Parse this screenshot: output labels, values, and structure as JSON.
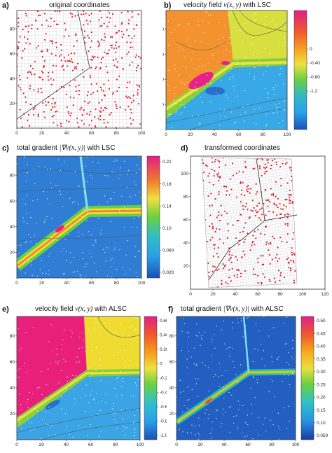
{
  "panels": {
    "a": {
      "label": "a)",
      "title": "original coordinates"
    },
    "b": {
      "label": "b)",
      "title_pre": "velocity field",
      "title_math": "v(x, y)",
      "title_post": "with LSC",
      "colorbar_ticks": [
        "0",
        "-0.40",
        "-0.80",
        "-1.2"
      ]
    },
    "c": {
      "label": "c)",
      "title_pre": "total gradient",
      "title_math": "|∇v(x, y)|",
      "title_post": "with LSC",
      "colorbar_ticks": [
        "0.22",
        "0.18",
        "0.14",
        "0.10",
        "0.060",
        "0.020"
      ]
    },
    "d": {
      "label": "d)",
      "title": "transformed coordinates"
    },
    "e": {
      "label": "e)",
      "title_pre": "velocity field",
      "title_math": "v(x, y)",
      "title_post": "with ALSC",
      "colorbar_ticks": [
        "0.60",
        "0.40",
        "0.20",
        "0",
        "-0.20",
        "-0.40",
        "-0.60",
        "-0.80",
        "-1.0"
      ]
    },
    "f": {
      "label": "f)",
      "title_pre": "total gradient",
      "title_math": "|∇v(x, y)|",
      "title_post": "with ALSC",
      "colorbar_ticks": [
        "0.50",
        "0.45",
        "0.40",
        "0.35",
        "0.30",
        "0.25",
        "0.20",
        "0.15",
        "0.10",
        "0.050"
      ]
    }
  },
  "axes": {
    "x_ticks": [
      "0",
      "20",
      "40",
      "60",
      "80",
      "100"
    ],
    "y_ticks": [
      "20",
      "40",
      "60",
      "80"
    ],
    "d_x_ticks": [
      "0",
      "20",
      "40",
      "60",
      "80",
      "100",
      "120"
    ],
    "d_y_ticks": [
      "20",
      "40",
      "60",
      "80",
      "100"
    ]
  },
  "colors": {
    "point_red": "#e0202a",
    "grid": "#9aa0b0",
    "fault": "#555555"
  }
}
